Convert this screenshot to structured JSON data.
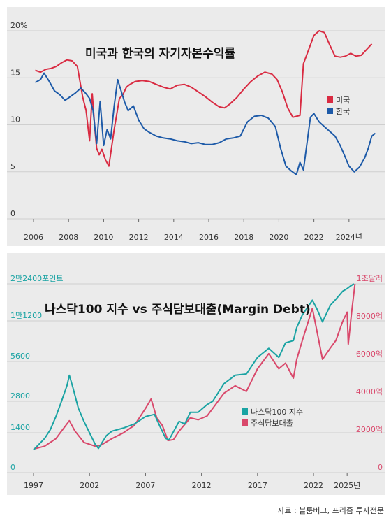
{
  "chart_data": [
    {
      "type": "line",
      "title": "미국과 한국의 자기자본수익률",
      "x_ticks": [
        "2006",
        "2008",
        "2010",
        "2012",
        "2014",
        "2016",
        "2018",
        "2020",
        "2022",
        "2024년"
      ],
      "y_ticks": [
        "20%",
        "15",
        "10",
        "5",
        "0"
      ],
      "ylim": [
        0,
        20
      ],
      "xlim": [
        2006,
        2025.6
      ],
      "grid": true,
      "legend_position": "right",
      "series": [
        {
          "name": "미국",
          "color": "#d92b42",
          "x": [
            2006.1,
            2006.4,
            2006.7,
            2007.0,
            2007.3,
            2007.6,
            2007.9,
            2008.2,
            2008.5,
            2008.8,
            2009.0,
            2009.2,
            2009.35,
            2009.5,
            2009.6,
            2009.75,
            2009.9,
            2010.1,
            2010.3,
            2010.6,
            2010.9,
            2011.1,
            2011.3,
            2011.5,
            2011.8,
            2012.2,
            2012.6,
            2013.0,
            2013.4,
            2013.8,
            2014.2,
            2014.6,
            2015.0,
            2015.4,
            2015.8,
            2016.2,
            2016.6,
            2016.9,
            2017.2,
            2017.6,
            2018.0,
            2018.4,
            2018.8,
            2019.2,
            2019.6,
            2019.9,
            2020.2,
            2020.5,
            2020.8,
            2021.0,
            2021.2,
            2021.4,
            2021.6,
            2021.8,
            2022.0,
            2022.3,
            2022.6,
            2022.9,
            2023.2,
            2023.5,
            2023.8,
            2024.1,
            2024.4,
            2024.7,
            2025.0,
            2025.3
          ],
          "y": [
            15.8,
            15.6,
            15.9,
            16.0,
            16.2,
            16.6,
            16.9,
            16.8,
            16.2,
            13.0,
            11.5,
            8.3,
            13.3,
            9.5,
            7.5,
            6.8,
            7.4,
            6.3,
            5.6,
            9.5,
            12.8,
            13.2,
            14.0,
            14.3,
            14.6,
            14.7,
            14.6,
            14.3,
            14.0,
            13.8,
            14.2,
            14.3,
            14.0,
            13.5,
            13.0,
            12.4,
            11.9,
            11.8,
            12.2,
            12.9,
            13.8,
            14.6,
            15.2,
            15.6,
            15.4,
            14.8,
            13.5,
            11.8,
            10.8,
            10.9,
            11.0,
            16.5,
            17.5,
            18.5,
            19.5,
            20.0,
            19.8,
            18.5,
            17.3,
            17.2,
            17.3,
            17.6,
            17.3,
            17.4,
            18.0,
            18.6
          ]
        },
        {
          "name": "한국",
          "color": "#1d5aa8",
          "x": [
            2006.1,
            2006.4,
            2006.6,
            2006.9,
            2007.2,
            2007.5,
            2007.8,
            2008.1,
            2008.4,
            2008.7,
            2009.0,
            2009.2,
            2009.4,
            2009.6,
            2009.8,
            2010.0,
            2010.2,
            2010.4,
            2010.6,
            2010.8,
            2011.0,
            2011.2,
            2011.4,
            2011.7,
            2012.0,
            2012.3,
            2012.6,
            2013.0,
            2013.4,
            2013.8,
            2014.2,
            2014.6,
            2015.0,
            2015.4,
            2015.8,
            2016.2,
            2016.6,
            2017.0,
            2017.4,
            2017.8,
            2018.2,
            2018.6,
            2019.0,
            2019.4,
            2019.8,
            2020.1,
            2020.4,
            2020.7,
            2021.0,
            2021.2,
            2021.4,
            2021.6,
            2021.8,
            2022.0,
            2022.3,
            2022.6,
            2022.9,
            2023.2,
            2023.5,
            2023.8,
            2024.0,
            2024.3,
            2024.6,
            2024.9,
            2025.1,
            2025.3,
            2025.5
          ],
          "y": [
            14.5,
            14.8,
            15.5,
            14.6,
            13.6,
            13.2,
            12.6,
            13.0,
            13.4,
            13.9,
            13.3,
            12.8,
            11.5,
            8.0,
            12.5,
            7.8,
            9.5,
            8.5,
            12.0,
            14.8,
            13.6,
            12.4,
            11.5,
            12.0,
            10.5,
            9.6,
            9.2,
            8.8,
            8.6,
            8.5,
            8.3,
            8.2,
            8.0,
            8.1,
            7.9,
            7.9,
            8.1,
            8.5,
            8.6,
            8.8,
            10.3,
            10.9,
            11.0,
            10.7,
            9.8,
            7.5,
            5.6,
            5.1,
            4.7,
            6.0,
            5.2,
            8.0,
            10.8,
            11.2,
            10.3,
            9.8,
            9.3,
            8.8,
            7.8,
            6.5,
            5.6,
            5.0,
            5.5,
            6.5,
            7.5,
            8.8,
            9.1
          ]
        }
      ]
    },
    {
      "type": "line",
      "title": "나스닥100 지수 vs 주식담보대출(Margin Debt)",
      "x_ticks": [
        "1997",
        "2002",
        "2007",
        "2012",
        "2017",
        "2022",
        "2025년"
      ],
      "y_left_ticks": [
        "2만2400포인트",
        "1만1200",
        "5600",
        "2800",
        "1400",
        "0"
      ],
      "y_right_ticks": [
        "1조달러",
        "8000억",
        "6000억",
        "4000억",
        "2000억",
        "0"
      ],
      "xlim": [
        1997,
        2025.8
      ],
      "grid": true,
      "legend_position": "bottom-right",
      "series": [
        {
          "name": "나스닥100 지수",
          "color": "#1aa3a3",
          "axis": "left",
          "x": [
            1997.0,
            1997.5,
            1998.0,
            1998.5,
            1999.0,
            1999.5,
            2000.0,
            2000.2,
            2000.5,
            2001.0,
            2001.5,
            2002.0,
            2002.5,
            2002.8,
            2003.5,
            2004.0,
            2005.0,
            2006.0,
            2007.0,
            2007.8,
            2008.3,
            2008.8,
            2009.1,
            2009.6,
            2010.0,
            2010.5,
            2011.0,
            2011.7,
            2012.5,
            2013.0,
            2014.0,
            2015.0,
            2016.0,
            2017.0,
            2018.0,
            2018.9,
            2019.5,
            2020.2,
            2020.5,
            2021.0,
            2021.9,
            2022.3,
            2022.8,
            2023.5,
            2024.0,
            2024.6,
            2025.0,
            2025.3,
            2025.6
          ],
          "y": [
            800,
            1000,
            1200,
            1500,
            2000,
            2800,
            3700,
            4400,
            3600,
            2400,
            1800,
            1400,
            1000,
            850,
            1300,
            1450,
            1550,
            1700,
            2000,
            2100,
            1600,
            1200,
            1150,
            1500,
            1800,
            1700,
            2200,
            2200,
            2600,
            2800,
            3800,
            4400,
            4500,
            6000,
            7000,
            6000,
            7700,
            8000,
            10000,
            12500,
            16500,
            14000,
            11000,
            15000,
            16800,
            19500,
            20500,
            21500,
            22400
          ]
        },
        {
          "name": "주식담보대출",
          "color": "#d9486b",
          "axis": "right",
          "x": [
            1997.0,
            1998.0,
            1999.0,
            1999.5,
            2000.2,
            2000.7,
            2001.5,
            2002.5,
            2003.0,
            2004.0,
            2005.0,
            2006.0,
            2007.0,
            2007.5,
            2008.0,
            2008.5,
            2009.0,
            2009.5,
            2010.0,
            2011.0,
            2011.7,
            2012.5,
            2013.0,
            2014.0,
            2015.0,
            2016.0,
            2017.0,
            2018.0,
            2018.9,
            2019.5,
            2020.2,
            2020.5,
            2021.0,
            2021.9,
            2022.3,
            2022.8,
            2023.5,
            2024.0,
            2024.6,
            2025.0,
            2025.1,
            2025.4,
            2025.7
          ],
          "y": [
            1250,
            1400,
            1800,
            2200,
            2750,
            2200,
            1600,
            1400,
            1450,
            1800,
            2100,
            2500,
            3400,
            3900,
            2900,
            2500,
            1700,
            1750,
            2200,
            2900,
            2800,
            3000,
            3400,
            4200,
            4600,
            4300,
            5500,
            6300,
            5500,
            5800,
            5000,
            6000,
            7000,
            8700,
            7500,
            6000,
            6600,
            7000,
            8000,
            8500,
            6800,
            8500,
            10000
          ]
        }
      ]
    }
  ],
  "source_note": "자료 : 블룸버그, 프리즘 투자전문"
}
